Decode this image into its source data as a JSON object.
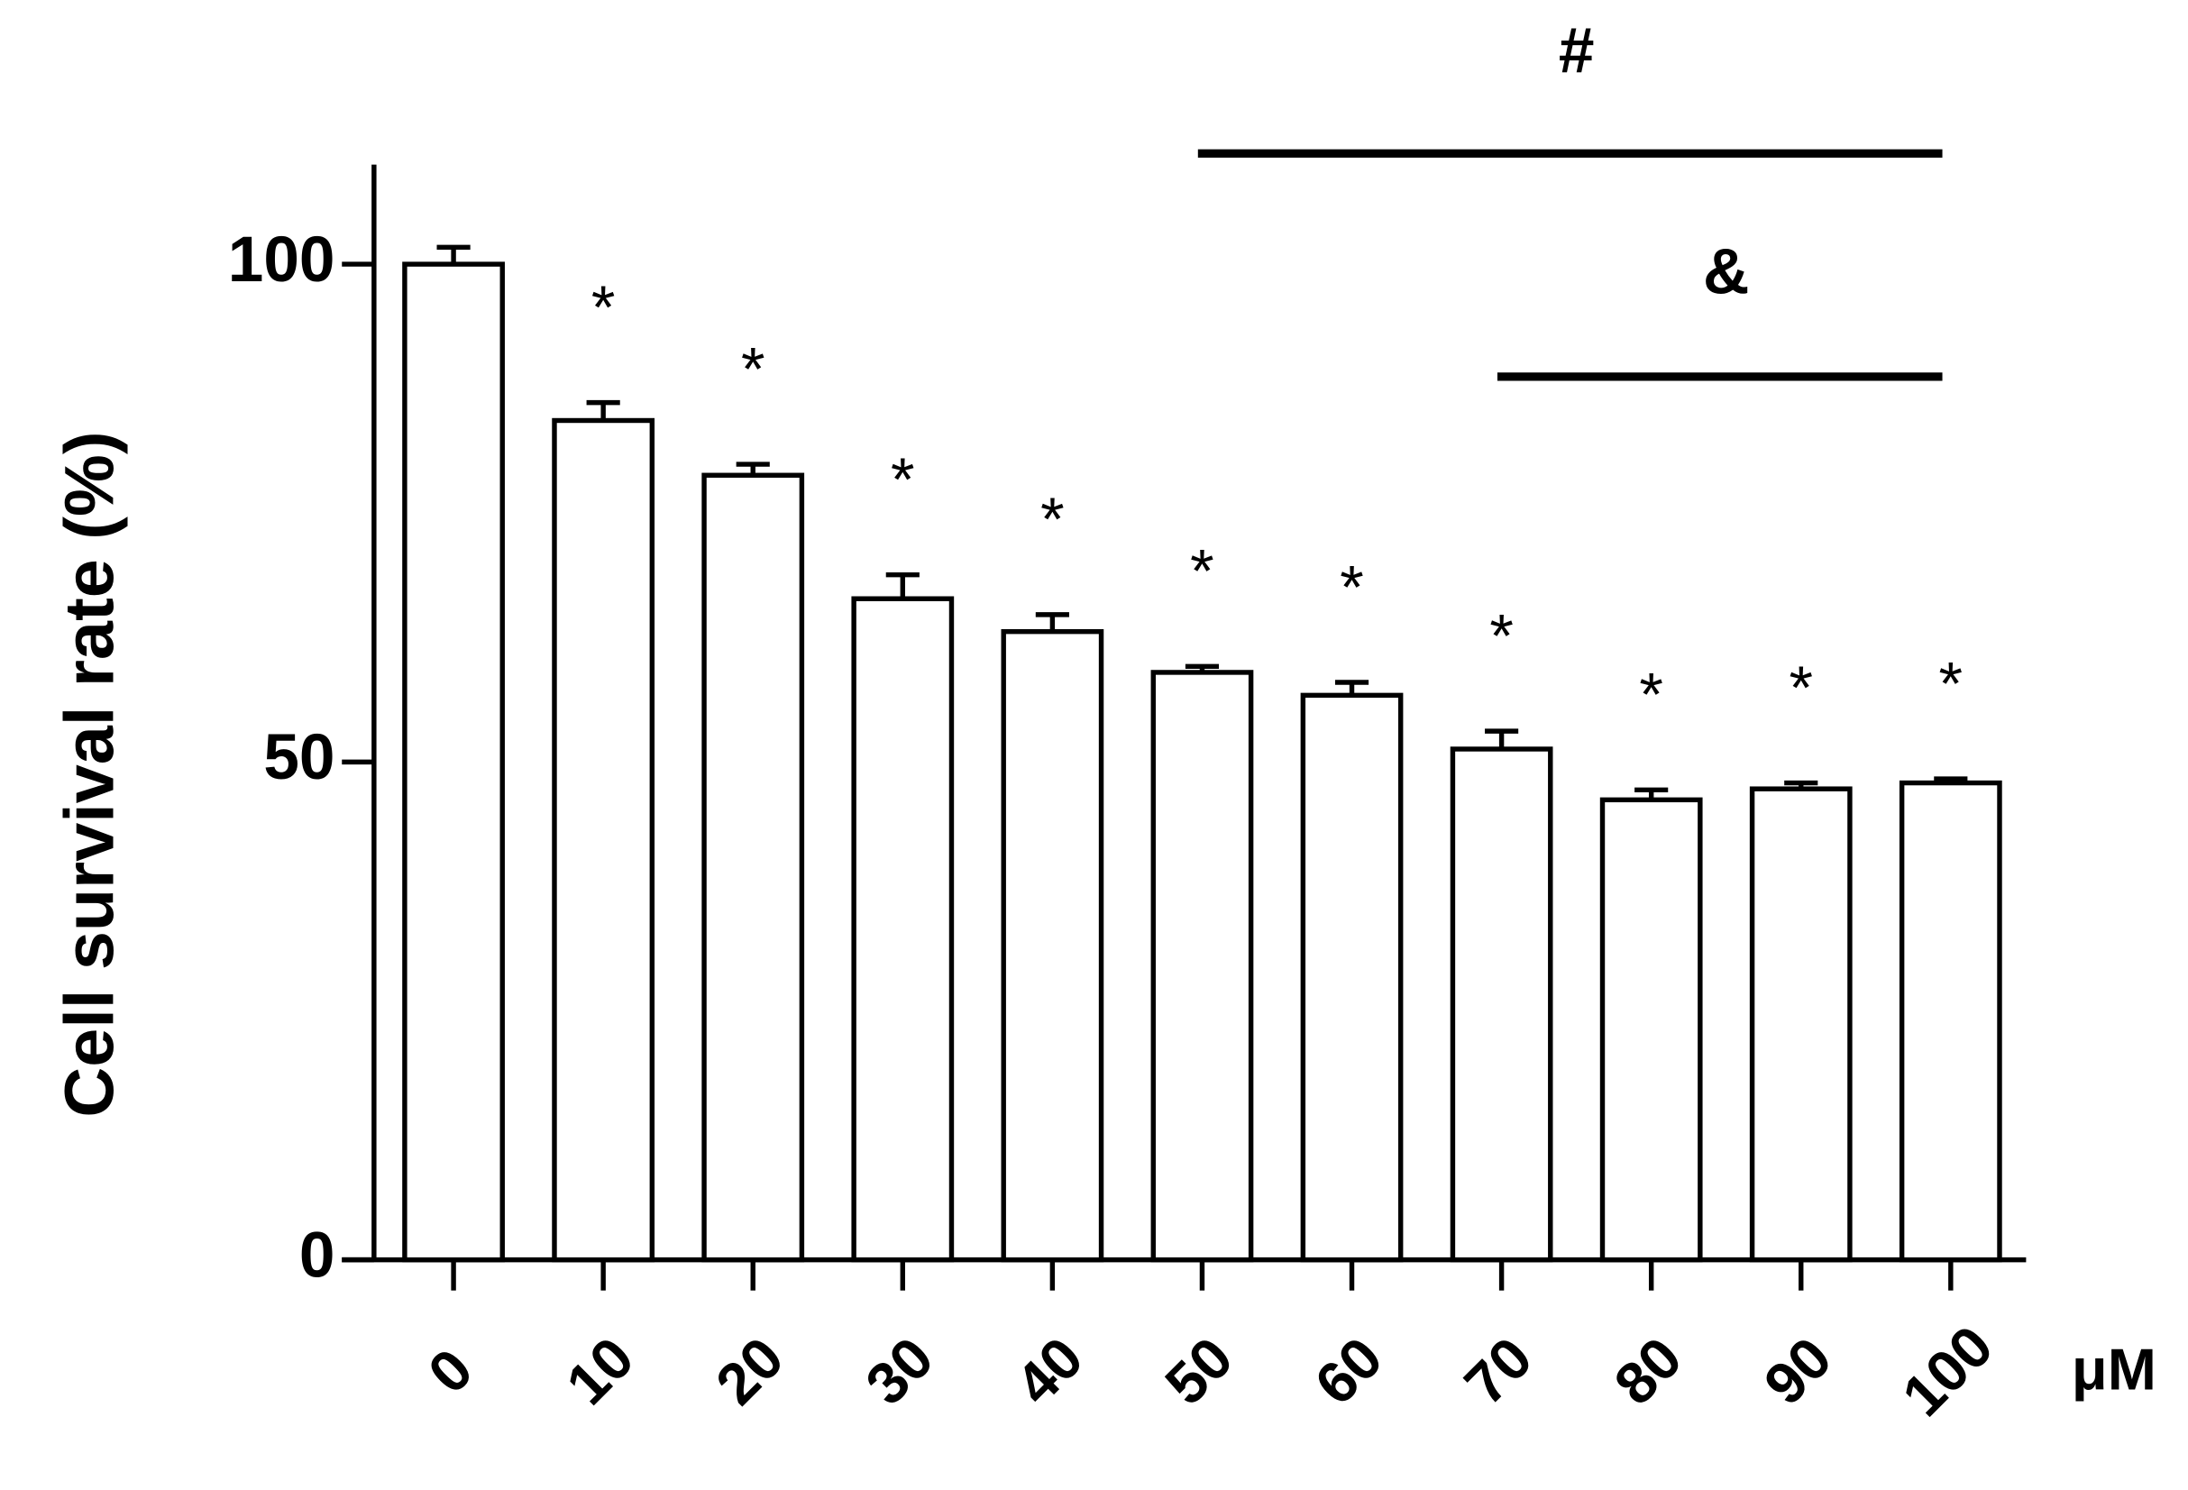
{
  "chart_data": {
    "type": "bar",
    "y_label": "Cell survival rate (%)",
    "x_unit": "μM",
    "categories": [
      "0",
      "10",
      "20",
      "30",
      "40",
      "50",
      "60",
      "70",
      "80",
      "90",
      "100"
    ],
    "series": [
      {
        "color": "#ffffff",
        "values": [
          100,
          84.3,
          78.8,
          66.4,
          63.1,
          59.0,
          56.7,
          51.3,
          46.2,
          47.3,
          47.9
        ],
        "errors": [
          1.7,
          1.8,
          1.1,
          2.4,
          1.7,
          0.6,
          1.3,
          1.8,
          1.0,
          0.6,
          0.4
        ]
      }
    ],
    "significance_labels": [
      null,
      "*",
      "*",
      "*",
      "*",
      "*",
      "*",
      "*",
      "*",
      "*",
      "*"
    ],
    "brackets": [
      {
        "label": "#",
        "from": "50",
        "to": "100"
      },
      {
        "label": "&",
        "from": "70",
        "to": "100"
      }
    ],
    "ylim": [
      0,
      110
    ],
    "yticks": [
      0,
      50,
      100
    ],
    "grid": false
  }
}
